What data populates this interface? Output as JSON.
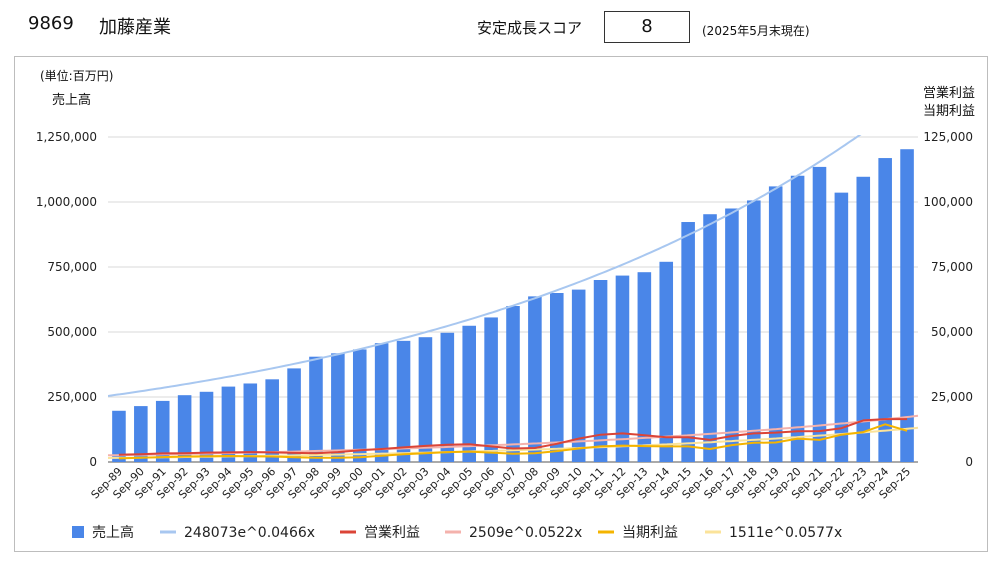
{
  "header": {
    "code": "9869",
    "company": "加藤産業",
    "score_label": "安定成長スコア",
    "score": "8",
    "as_of": "(2025年5月末現在)"
  },
  "chart_data": {
    "type": "bar",
    "unit_label": "(単位:百万円)",
    "left_axis_label": "売上高",
    "right_axis_label_1": "営業利益",
    "right_axis_label_2": "当期利益",
    "left_ylim": [
      0,
      1250000
    ],
    "right_ylim": [
      0,
      125000
    ],
    "left_ticks": [
      "0",
      "250,000",
      "500,000",
      "750,000",
      "1,000,000",
      "1,250,000"
    ],
    "right_ticks": [
      "0",
      "25,000",
      "50,000",
      "75,000",
      "100,000",
      "125,000"
    ],
    "grid": true,
    "legend_position": "bottom",
    "categories": [
      "Sep-89",
      "Sep-90",
      "Sep-91",
      "Sep-92",
      "Sep-93",
      "Sep-94",
      "Sep-95",
      "Sep-96",
      "Sep-97",
      "Sep-98",
      "Sep-99",
      "Sep-00",
      "Sep-01",
      "Sep-02",
      "Sep-03",
      "Sep-04",
      "Sep-05",
      "Sep-06",
      "Sep-07",
      "Sep-08",
      "Sep-09",
      "Sep-10",
      "Sep-11",
      "Sep-12",
      "Sep-13",
      "Sep-14",
      "Sep-15",
      "Sep-16",
      "Sep-17",
      "Sep-18",
      "Sep-19",
      "Sep-20",
      "Sep-21",
      "Sep-22",
      "Sep-23",
      "Sep-24",
      "Sep-25"
    ],
    "series": [
      {
        "name": "売上高",
        "type": "bar",
        "axis": "left",
        "color": "#4a86e8",
        "values": [
          197000,
          215000,
          235000,
          257000,
          270000,
          290000,
          302000,
          318000,
          360000,
          405000,
          418000,
          433000,
          457000,
          466000,
          480000,
          497000,
          524000,
          556000,
          600000,
          637000,
          650000,
          663000,
          700000,
          717000,
          730000,
          770000,
          923000,
          953000,
          975000,
          1006000,
          1060000,
          1101000,
          1135000,
          1036000,
          1097000,
          1169000,
          1203000
        ]
      },
      {
        "name": "営業利益",
        "type": "line",
        "axis": "right",
        "color": "#db4437",
        "values": [
          2800,
          3000,
          3300,
          3400,
          3600,
          3700,
          3800,
          3700,
          3500,
          3400,
          3800,
          4500,
          5000,
          5600,
          6200,
          6600,
          6800,
          6000,
          5200,
          5400,
          7000,
          9000,
          10500,
          11000,
          10300,
          9500,
          9500,
          8500,
          10000,
          11000,
          11300,
          11800,
          11900,
          13000,
          16000,
          16500,
          16500
        ]
      },
      {
        "name": "当期利益",
        "type": "line",
        "axis": "right",
        "color": "#f4b400",
        "values": [
          1400,
          1600,
          1900,
          2100,
          2200,
          2300,
          2200,
          2100,
          1800,
          1600,
          1600,
          1800,
          2400,
          3000,
          3400,
          3800,
          4000,
          3600,
          3200,
          3400,
          4200,
          5200,
          6000,
          6300,
          6100,
          6000,
          6000,
          5000,
          6500,
          7400,
          7500,
          9000,
          8500,
          10500,
          11500,
          14500,
          12000
        ]
      }
    ],
    "trendlines": [
      {
        "name": "248073e^0.0466x",
        "axis": "left",
        "color": "#a8c7f0",
        "a": 248073,
        "b": 0.0466
      },
      {
        "name": "2509e^0.0522x",
        "axis": "right",
        "color": "#f4b2ac",
        "a": 2509,
        "b": 0.0522
      },
      {
        "name": "1511e^0.0577x",
        "axis": "right",
        "color": "#fbe39a",
        "a": 1511,
        "b": 0.0577
      }
    ]
  }
}
